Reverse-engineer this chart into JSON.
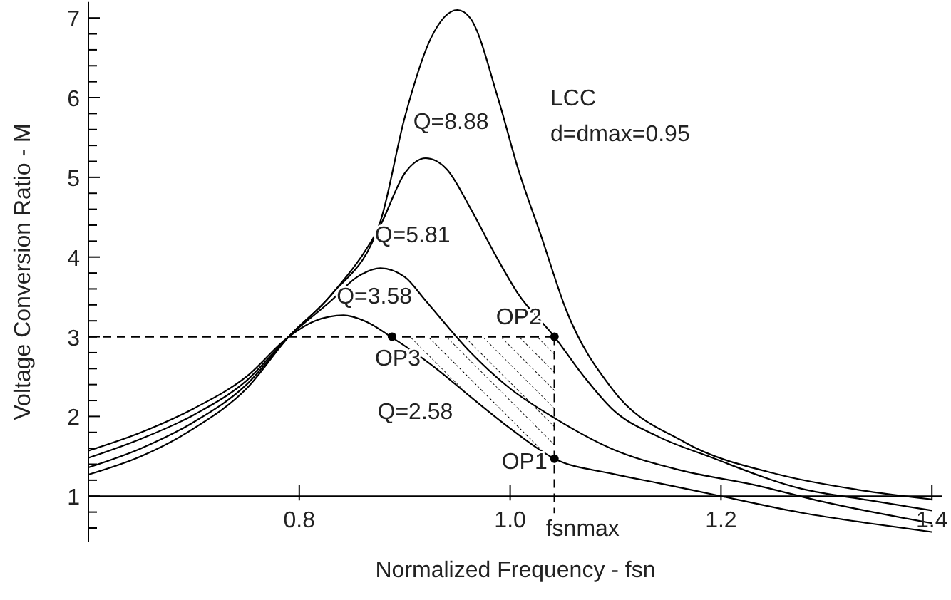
{
  "chart_data": {
    "type": "line",
    "xlabel": "Normalized Frequency - fsn",
    "ylabel": "Voltage Conversion Ratio - M",
    "xlim": [
      0.6,
      1.41
    ],
    "ylim": [
      0.43,
      7.2
    ],
    "xticks": [
      0.8,
      {
        "value": 1,
        "label": "1.0"
      },
      1.2,
      1.4
    ],
    "yticks": [
      {
        "value": 0.6,
        "label": null
      },
      {
        "value": 0.8,
        "label": null
      },
      1,
      {
        "value": 1.2,
        "label": null
      },
      {
        "value": 1.4,
        "label": null
      },
      {
        "value": 1.6,
        "label": null
      },
      {
        "value": 1.8,
        "label": null
      },
      2,
      {
        "value": 2.2,
        "label": null
      },
      {
        "value": 2.4,
        "label": null
      },
      {
        "value": 2.6,
        "label": null
      },
      {
        "value": 2.8,
        "label": null
      },
      3,
      {
        "value": 3.2,
        "label": null
      },
      {
        "value": 3.4,
        "label": null
      },
      {
        "value": 3.6,
        "label": null
      },
      {
        "value": 3.8,
        "label": null
      },
      4,
      {
        "value": 4.2,
        "label": null
      },
      {
        "value": 4.4,
        "label": null
      },
      {
        "value": 4.6,
        "label": null
      },
      {
        "value": 4.8,
        "label": null
      },
      5,
      {
        "value": 5.2,
        "label": null
      },
      {
        "value": 5.4,
        "label": null
      },
      {
        "value": 5.6,
        "label": null
      },
      {
        "value": 5.8,
        "label": null
      },
      6,
      {
        "value": 6.2,
        "label": null
      },
      {
        "value": 6.4,
        "label": null
      },
      {
        "value": 6.6,
        "label": null
      },
      {
        "value": 6.8,
        "label": null
      },
      7
    ],
    "marker": "none",
    "line_style": "solid",
    "series": [
      {
        "color": "#000000",
        "x": [
          0.6,
          0.65,
          0.7,
          0.75,
          0.79,
          0.83,
          0.877,
          0.9,
          0.925,
          0.95,
          0.962,
          0.989,
          1.007,
          1.03,
          1.053,
          1.097,
          1.165,
          1.255,
          1.33,
          1.4
        ],
        "values": [
          1.27,
          1.5,
          1.85,
          2.35,
          3.0,
          3.52,
          4.45,
          5.75,
          6.75,
          7.1,
          7.0,
          5.97,
          5.13,
          4.24,
          3.34,
          2.34,
          1.68,
          1.27,
          1.08,
          0.96
        ]
      },
      {
        "color": "#000000",
        "x": [
          0.6,
          0.65,
          0.7,
          0.75,
          0.79,
          0.83,
          0.877,
          0.9,
          0.92,
          0.94,
          0.962,
          0.985,
          1.007,
          1.042,
          1.07,
          1.097,
          1.14,
          1.188,
          1.277,
          1.34,
          1.4
        ],
        "values": [
          1.36,
          1.6,
          1.93,
          2.4,
          3.0,
          3.52,
          4.4,
          5.05,
          5.24,
          5.1,
          4.62,
          4.05,
          3.55,
          3.0,
          2.5,
          2.09,
          1.75,
          1.5,
          1.09,
          0.95,
          0.82
        ]
      },
      {
        "color": "#000000",
        "x": [
          0.6,
          0.65,
          0.7,
          0.75,
          0.79,
          0.83,
          0.855,
          0.877,
          0.9,
          0.92,
          0.962,
          1.0,
          1.042,
          1.097,
          1.16,
          1.232,
          1.3,
          1.4
        ],
        "values": [
          1.48,
          1.72,
          2.02,
          2.45,
          3.0,
          3.45,
          3.75,
          3.86,
          3.75,
          3.45,
          2.81,
          2.35,
          1.98,
          1.59,
          1.33,
          1.14,
          0.92,
          0.66
        ]
      },
      {
        "color": "#000000",
        "x": [
          0.6,
          0.65,
          0.7,
          0.75,
          0.79,
          0.815,
          0.842,
          0.865,
          0.888,
          0.93,
          0.962,
          1.0,
          1.042,
          1.097,
          1.142,
          1.2,
          1.277,
          1.34,
          1.4
        ],
        "values": [
          1.57,
          1.8,
          2.1,
          2.5,
          3.0,
          3.2,
          3.27,
          3.18,
          2.99,
          2.6,
          2.25,
          1.85,
          1.47,
          1.28,
          1.16,
          1.0,
          0.79,
          0.66,
          0.55
        ]
      },
      {
        "type": "scatter",
        "marker": "circle",
        "color": "#000000",
        "x": [
          1.042,
          1.042,
          0.888
        ],
        "values": [
          1.47,
          3.0,
          3.0
        ]
      }
    ],
    "ref_lines": [
      {
        "axis": "y",
        "value": 3,
        "line_style": "dashed"
      },
      {
        "axis": "x",
        "value": 1.042,
        "label": "fsnmax",
        "line_style": "dashed"
      }
    ],
    "annotations": [
      {
        "text": "Q=8.88",
        "x": 0.9,
        "y": 5.75
      },
      {
        "text": "Q=5.81",
        "x": 0.877,
        "y": 4.4
      },
      {
        "text": "Q=3.58",
        "x": 0.83,
        "y": 3.45
      },
      {
        "text": "Q=2.58",
        "x": 0.962,
        "y": 2.25
      },
      {
        "text": "OP2",
        "x": 1.042,
        "y": 3.0
      },
      {
        "text": "OP3",
        "x": 0.888,
        "y": 3.0
      },
      {
        "text": "OP1",
        "x": 1.042,
        "y": 1.47
      },
      "LCC",
      "d=dmax=0.95"
    ]
  }
}
